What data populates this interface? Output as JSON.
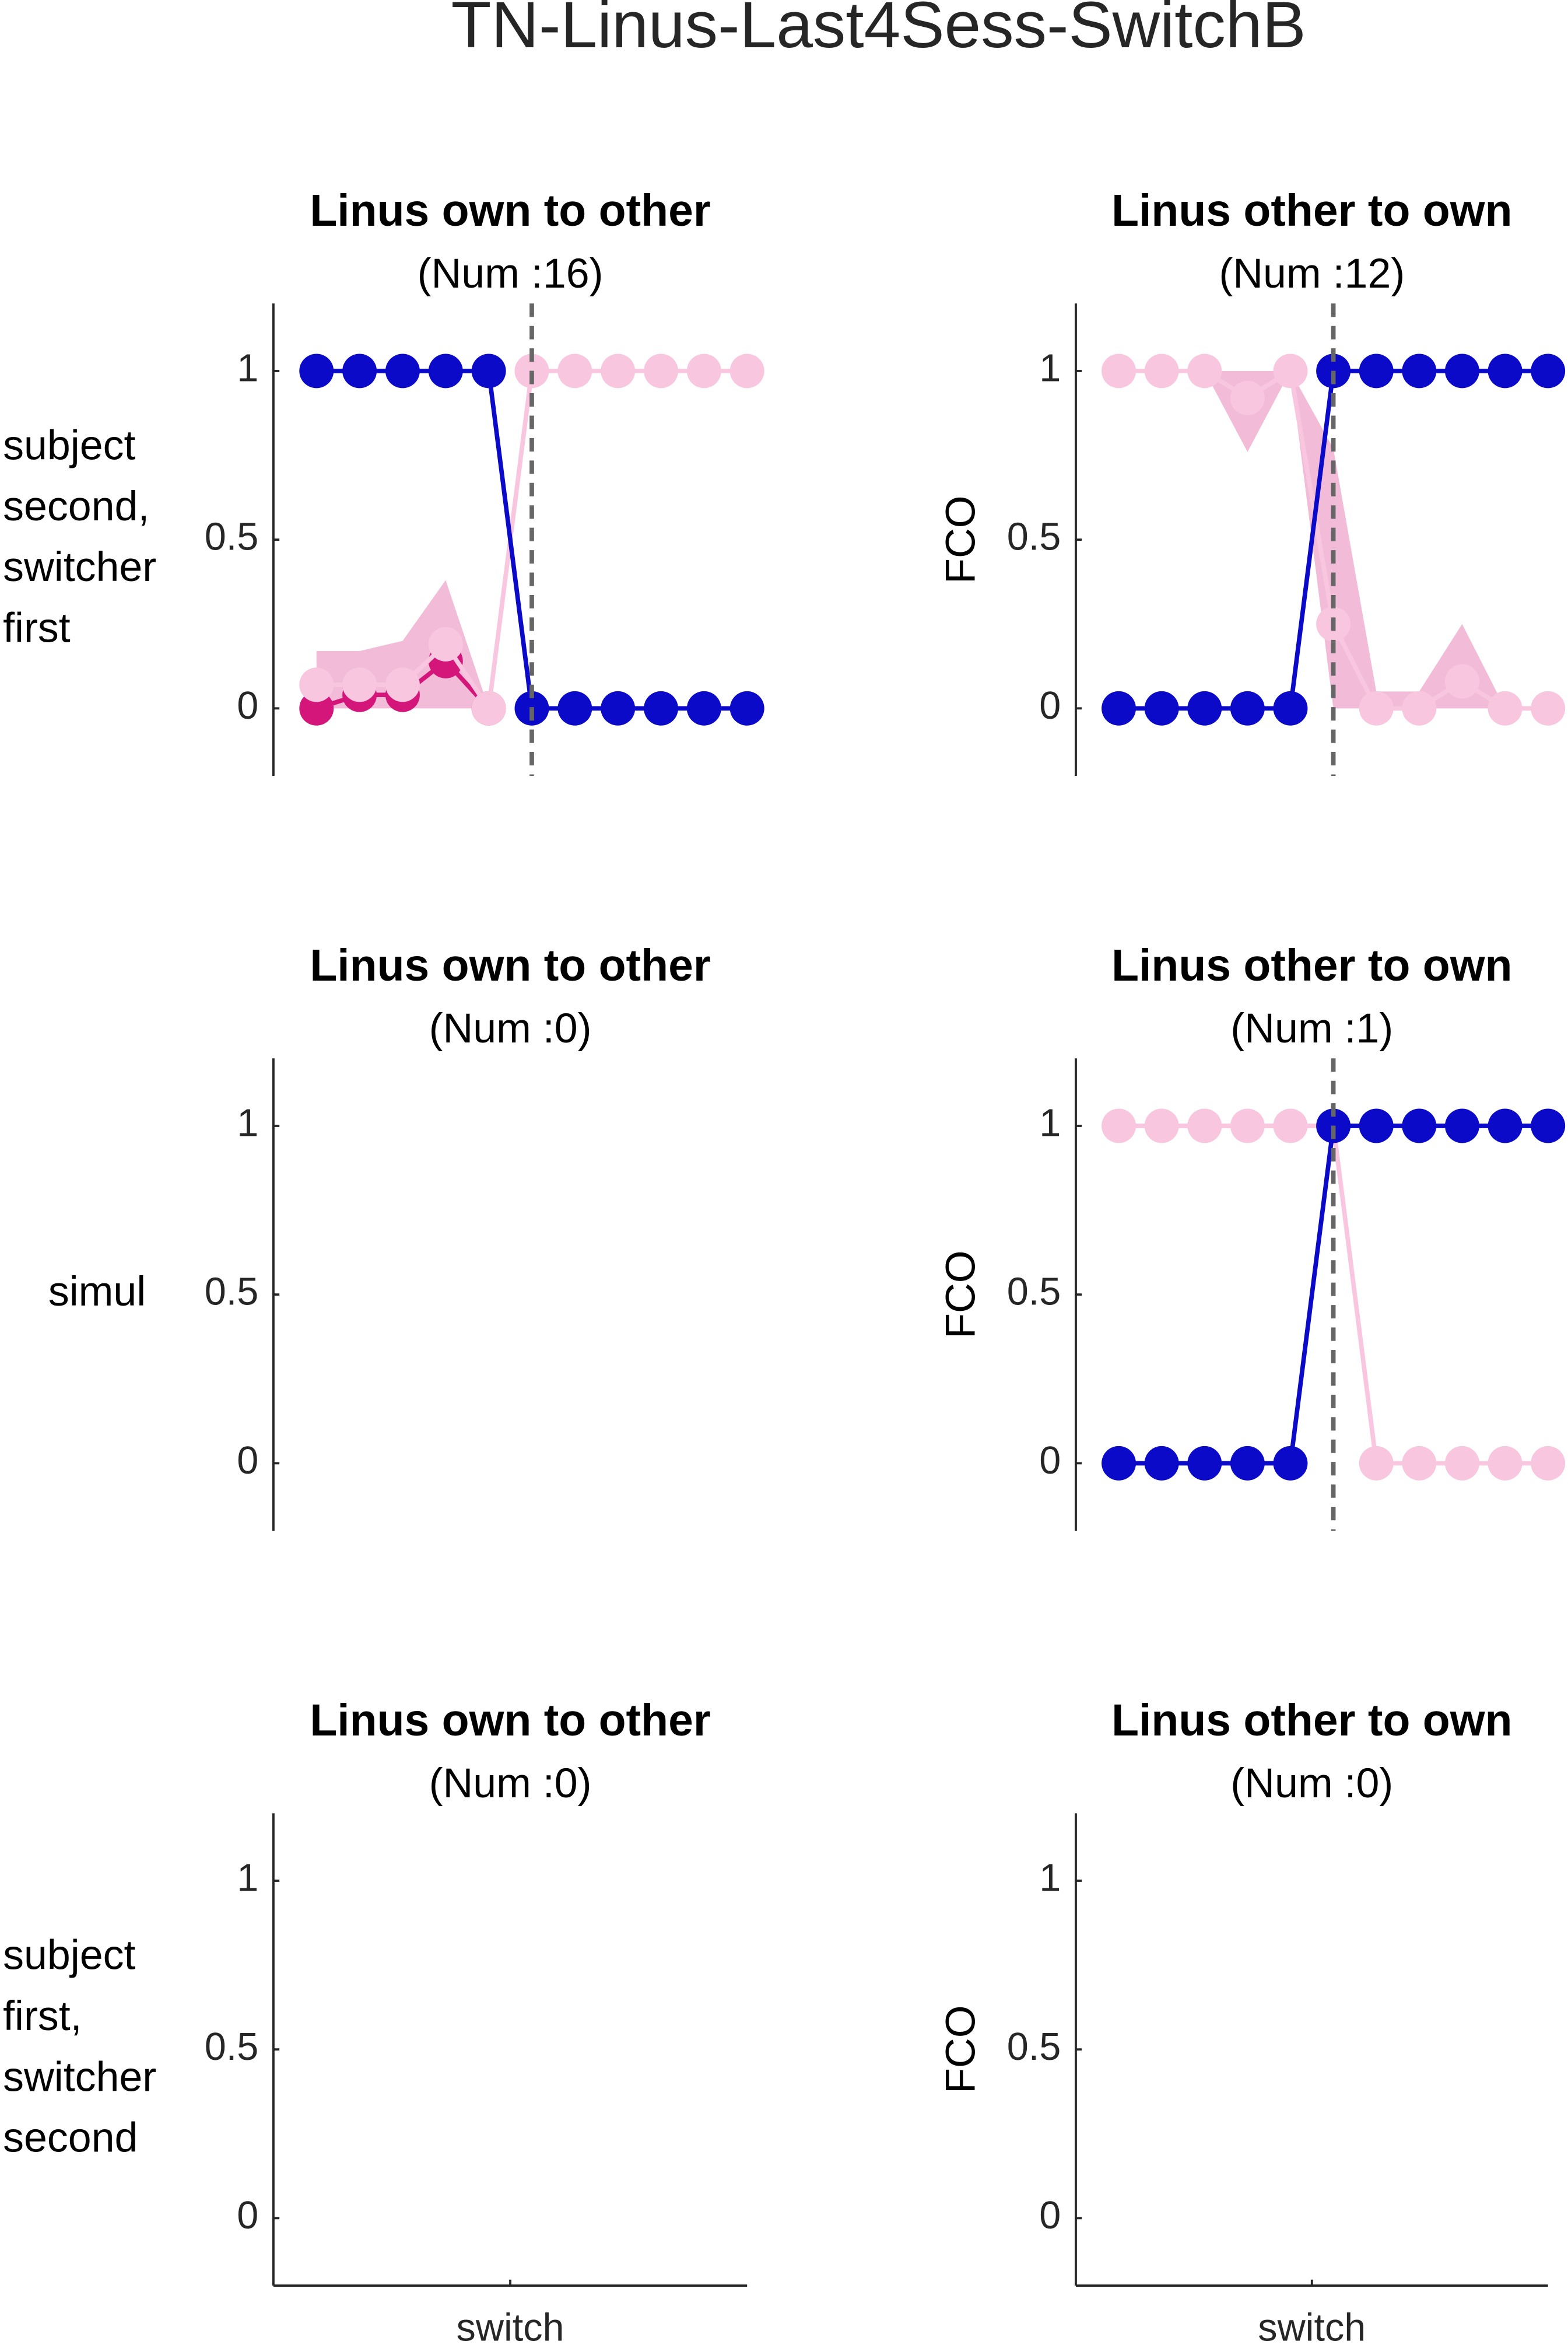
{
  "title": "TN-Linus-Last4Sess-SwitchB",
  "chart_data": [
    {
      "type": "line",
      "title": "Linus own to other",
      "subtitle": "(Num :16)",
      "ylabel": [
        "subject",
        "second,",
        "switcher",
        "first"
      ],
      "ylabel_rotated": false,
      "xlim": [
        -6,
        5
      ],
      "ylim": [
        -0.2,
        1.2
      ],
      "yticks": [
        0,
        0.5,
        1
      ],
      "xticks": [],
      "vline": 0,
      "x_axis_line": false,
      "x": [
        -5,
        -4,
        -3,
        -2,
        -1,
        0,
        1,
        2,
        3,
        4,
        5
      ],
      "series": [
        {
          "color": "#d4157a",
          "values": [
            0,
            0.04,
            0.04,
            0.14,
            0,
            null,
            null,
            null,
            null,
            null,
            null
          ],
          "band_lower": [
            0,
            0,
            0,
            0,
            0,
            null,
            null,
            null,
            null,
            null,
            null
          ],
          "band_upper": [
            0.17,
            0.17,
            0.2,
            0.38,
            0,
            null,
            null,
            null,
            null,
            null,
            null
          ],
          "band_color": "#eea6cb"
        },
        {
          "color": "#f9c6df",
          "values": [
            0.07,
            0.07,
            0.07,
            0.19,
            0,
            1,
            1,
            1,
            1,
            1,
            1
          ]
        },
        {
          "color": "#0a0ac8",
          "values": [
            1,
            1,
            1,
            1,
            1,
            0,
            0,
            0,
            0,
            0,
            0
          ]
        }
      ]
    },
    {
      "type": "line",
      "title": "Linus other to own",
      "subtitle": "(Num :12)",
      "ylabel": [
        "FCO"
      ],
      "ylabel_rotated": true,
      "xlim": [
        -6,
        5
      ],
      "ylim": [
        -0.2,
        1.2
      ],
      "yticks": [
        0,
        0.5,
        1
      ],
      "xticks": [],
      "vline": 0,
      "x_axis_line": false,
      "x": [
        -5,
        -4,
        -3,
        -2,
        -1,
        0,
        1,
        2,
        3,
        4,
        5
      ],
      "series": [
        {
          "color": "#f9c6df",
          "values": [
            1,
            1,
            1,
            0.92,
            1,
            0.25,
            0,
            0,
            0.08,
            0,
            0
          ],
          "band_lower": [
            1,
            1,
            1,
            0.76,
            1,
            0,
            0,
            0,
            0,
            0,
            0
          ],
          "band_upper": [
            1,
            1,
            1,
            1,
            1,
            0.77,
            0.05,
            0.05,
            0.25,
            0,
            0
          ],
          "band_color": "#eea6cb"
        },
        {
          "color": "#0a0ac8",
          "values": [
            0,
            0,
            0,
            0,
            0,
            1,
            1,
            1,
            1,
            1,
            1
          ]
        }
      ]
    },
    {
      "type": "line",
      "title": "Linus own to other",
      "subtitle": "(Num :0)",
      "ylabel": [
        "simul"
      ],
      "ylabel_rotated": false,
      "xlim": [
        -6,
        5
      ],
      "ylim": [
        -0.2,
        1.2
      ],
      "yticks": [
        0,
        0.5,
        1
      ],
      "xticks": [],
      "x_axis_line": false,
      "series": []
    },
    {
      "type": "line",
      "title": "Linus other to own",
      "subtitle": "(Num :1)",
      "ylabel": [
        "FCO"
      ],
      "ylabel_rotated": true,
      "xlim": [
        -6,
        5
      ],
      "ylim": [
        -0.2,
        1.2
      ],
      "yticks": [
        0,
        0.5,
        1
      ],
      "xticks": [],
      "vline": 0,
      "x_axis_line": false,
      "x": [
        -5,
        -4,
        -3,
        -2,
        -1,
        0,
        1,
        2,
        3,
        4,
        5
      ],
      "series": [
        {
          "color": "#f9c6df",
          "values": [
            1,
            1,
            1,
            1,
            1,
            1,
            0,
            0,
            0,
            0,
            0
          ]
        },
        {
          "color": "#0a0ac8",
          "values": [
            0,
            0,
            0,
            0,
            0,
            1,
            1,
            1,
            1,
            1,
            1
          ]
        }
      ]
    },
    {
      "type": "line",
      "title": "Linus own to other",
      "subtitle": "(Num :0)",
      "ylabel": [
        "subject",
        "first,",
        "switcher",
        "second"
      ],
      "ylabel_rotated": false,
      "xlim": [
        -6,
        5
      ],
      "ylim": [
        -0.2,
        1.2
      ],
      "yticks": [
        0,
        0.5,
        1
      ],
      "xticks": [
        {
          "value": -0.5,
          "label": "switch"
        }
      ],
      "x_axis_line": true,
      "series": []
    },
    {
      "type": "line",
      "title": "Linus other to own",
      "subtitle": "(Num :0)",
      "ylabel": [
        "FCO"
      ],
      "ylabel_rotated": true,
      "xlim": [
        -6,
        5
      ],
      "ylim": [
        -0.2,
        1.2
      ],
      "yticks": [
        0,
        0.5,
        1
      ],
      "xticks": [
        {
          "value": -0.5,
          "label": "switch"
        }
      ],
      "x_axis_line": true,
      "series": []
    }
  ]
}
